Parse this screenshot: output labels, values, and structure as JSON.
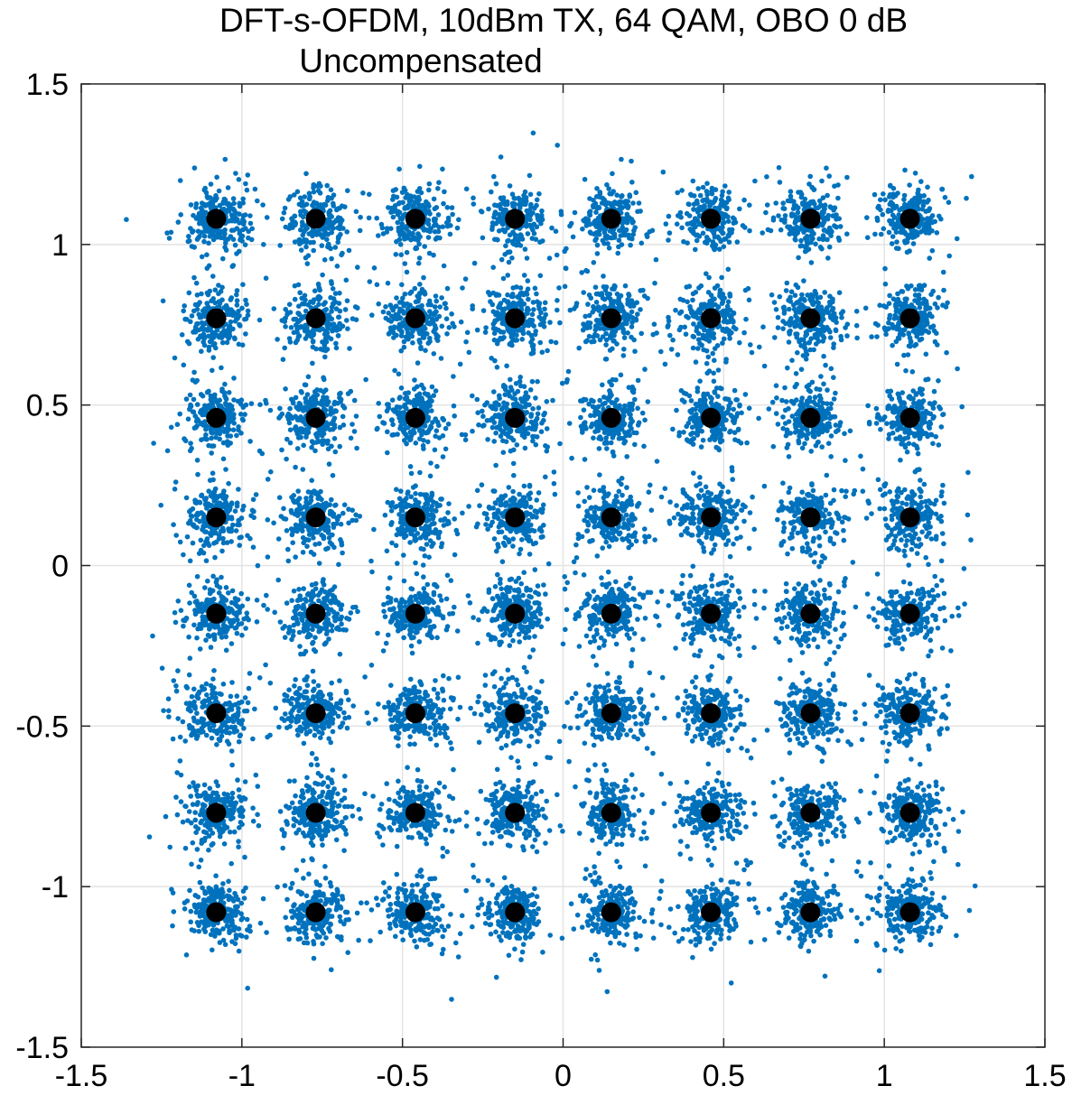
{
  "chart_data": {
    "type": "scatter",
    "title": "DFT-s-OFDM, 10dBm TX, 64 QAM, OBO 0 dB",
    "subtitle": "Uncompensated",
    "xlabel": "",
    "ylabel": "",
    "xlim": [
      -1.5,
      1.5
    ],
    "ylim": [
      -1.5,
      1.5
    ],
    "xticks": [
      -1.5,
      -1,
      -0.5,
      0,
      0.5,
      1,
      1.5
    ],
    "yticks": [
      -1.5,
      -1,
      -0.5,
      0,
      0.5,
      1,
      1.5
    ],
    "xtick_labels": [
      "-1.5",
      "-1",
      "-0.5",
      "0",
      "0.5",
      "1",
      "1.5"
    ],
    "ytick_labels": [
      "-1.5",
      "-1",
      "-0.5",
      "0",
      "0.5",
      "1",
      "1.5"
    ],
    "grid": true,
    "legend": "none",
    "constellation_levels": [
      -1.08,
      -0.77,
      -0.46,
      -0.15,
      0.15,
      0.46,
      0.77,
      1.08
    ],
    "received_symbol_spread": 0.045,
    "received_points_per_symbol": 220,
    "series": [
      {
        "role": "received",
        "color": "#0072BD"
      },
      {
        "role": "reference",
        "color": "#000000"
      }
    ]
  }
}
